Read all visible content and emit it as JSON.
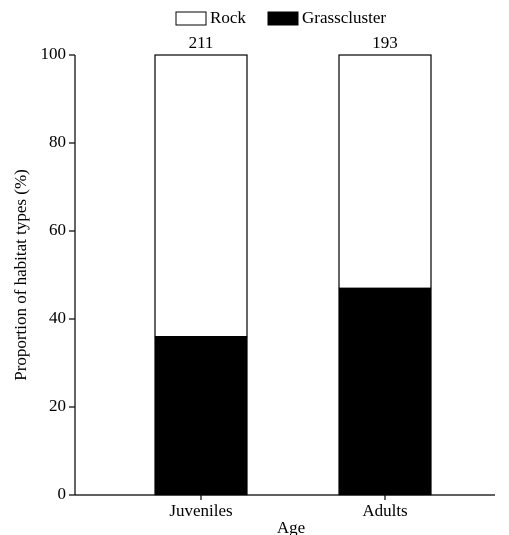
{
  "chart_data": {
    "type": "stacked_bar",
    "categories": [
      "Juveniles",
      "Adults"
    ],
    "series": [
      {
        "name": "Rock",
        "color": "#ffffff",
        "values": [
          64,
          53
        ]
      },
      {
        "name": "Grasscluster",
        "color": "#000000",
        "values": [
          36,
          47
        ]
      }
    ],
    "sample_sizes": [
      211,
      193
    ],
    "x_label": "Age",
    "y_label": "Proportion of habitat types (%)",
    "ylim": [
      0,
      100
    ],
    "yticks": [
      0,
      20,
      40,
      60,
      80,
      100
    ],
    "legend": "top"
  }
}
